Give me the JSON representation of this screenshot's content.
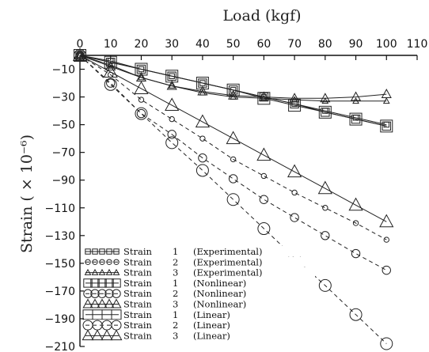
{
  "chart_data": {
    "type": "line",
    "xlabel": "Load (kgf)",
    "ylabel": "Strain ( × 10⁻⁶)",
    "xlim": [
      0,
      110
    ],
    "ylim": [
      -210,
      0
    ],
    "x_ticks": [
      0,
      10,
      20,
      30,
      40,
      50,
      60,
      70,
      80,
      90,
      100,
      110
    ],
    "y_ticks": [
      -10,
      -30,
      -50,
      -70,
      -90,
      -110,
      -130,
      -150,
      -170,
      -190,
      -210
    ],
    "x_axis_position": "top",
    "grid": false,
    "legend_position": "bottom-left",
    "series": [
      {
        "name": "Strain 1 (Experimental)",
        "line": "solid",
        "marker": "square",
        "marker_size": "small",
        "x": [
          0,
          10,
          20,
          30,
          40,
          50,
          60,
          70,
          80,
          90,
          100
        ],
        "y": [
          0,
          -4,
          -10,
          -15,
          -20,
          -25,
          -30,
          -35,
          -40,
          -45,
          -50
        ]
      },
      {
        "name": "Strain 2 (Experimental)",
        "line": "dashed",
        "marker": "circle",
        "marker_size": "small",
        "x": [
          0,
          10,
          20,
          30,
          40,
          50,
          60,
          70,
          80,
          90,
          100
        ],
        "y": [
          0,
          -14,
          -32,
          -46,
          -60,
          -75,
          -87,
          -99,
          -110,
          -121,
          -133
        ]
      },
      {
        "name": "Strain 3 (Experimental)",
        "line": "solid",
        "marker": "triangle",
        "marker_size": "small",
        "x": [
          0,
          10,
          20,
          30,
          40,
          50,
          60,
          70,
          80,
          90,
          100
        ],
        "y": [
          0,
          -7,
          -16,
          -22,
          -27,
          -30,
          -31,
          -32,
          -33,
          -33,
          -33
        ]
      },
      {
        "name": "Strain 1 (Nonlinear)",
        "line": "solid",
        "marker": "square",
        "marker_size": "medium",
        "x": [
          0,
          10,
          20,
          30,
          40,
          50,
          60,
          70,
          80,
          90,
          100
        ],
        "y": [
          0,
          -5,
          -10,
          -15,
          -20,
          -25,
          -30,
          -35,
          -41,
          -46,
          -51
        ]
      },
      {
        "name": "Strain 2 (Nonlinear)",
        "line": "dashed",
        "marker": "circle",
        "marker_size": "medium",
        "x": [
          0,
          10,
          20,
          30,
          40,
          50,
          60,
          70,
          80,
          90,
          100
        ],
        "y": [
          0,
          -20,
          -42,
          -57,
          -74,
          -89,
          -104,
          -117,
          -130,
          -143,
          -155
        ]
      },
      {
        "name": "Strain 3 (Nonlinear)",
        "line": "solid",
        "marker": "triangle",
        "marker_size": "medium",
        "x": [
          0,
          10,
          20,
          30,
          40,
          50,
          60,
          70,
          80,
          90,
          100
        ],
        "y": [
          0,
          -8,
          -16,
          -22,
          -26,
          -29,
          -30,
          -31,
          -31,
          -30,
          -28
        ]
      },
      {
        "name": "Strain 1 (Linear)",
        "line": "solid",
        "marker": "square",
        "marker_size": "large",
        "x": [
          0,
          10,
          20,
          30,
          40,
          50,
          60,
          70,
          80,
          90,
          100
        ],
        "y": [
          0,
          -5,
          -10,
          -15,
          -20,
          -25,
          -31,
          -36,
          -41,
          -46,
          -51
        ]
      },
      {
        "name": "Strain 2 (Linear)",
        "line": "dashed",
        "marker": "circle",
        "marker_size": "large",
        "x": [
          0,
          10,
          20,
          30,
          40,
          50,
          60,
          70,
          80,
          90,
          100
        ],
        "y": [
          0,
          -21,
          -42,
          -63,
          -83,
          -104,
          -125,
          -146,
          -166,
          -187,
          -208
        ]
      },
      {
        "name": "Strain 3 (Linear)",
        "line": "solid",
        "marker": "triangle",
        "marker_size": "large",
        "x": [
          0,
          10,
          20,
          30,
          40,
          50,
          60,
          70,
          80,
          90,
          100
        ],
        "y": [
          0,
          -12,
          -24,
          -36,
          -48,
          -60,
          -72,
          -84,
          -96,
          -108,
          -120
        ]
      }
    ],
    "legend_labels": [
      [
        "Strain",
        "1",
        "(Experimental)"
      ],
      [
        "Strain",
        "2",
        "(Experimental)"
      ],
      [
        "Strain",
        "3",
        "(Experimental)"
      ],
      [
        "Strain",
        "1",
        "(Nonlinear)"
      ],
      [
        "Strain",
        "2",
        "(Nonlinear)"
      ],
      [
        "Strain",
        "3",
        "(Nonlinear)"
      ],
      [
        "Strain",
        "1",
        "(Linear)"
      ],
      [
        "Strain",
        "2",
        "(Linear)"
      ],
      [
        "Strain",
        "3",
        "(Linear)"
      ]
    ]
  }
}
